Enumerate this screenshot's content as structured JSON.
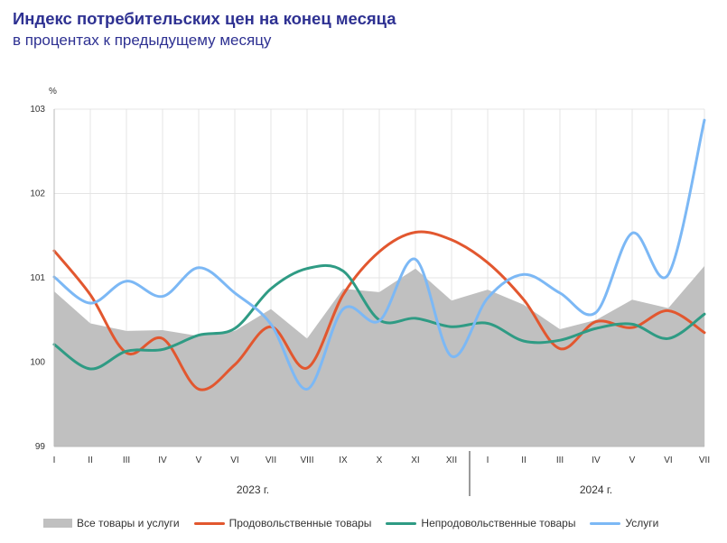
{
  "title": "Индекс потребительских цен на конец месяца",
  "subtitle": "в процентах к предыдущему месяцу",
  "chart_data": {
    "type": "line",
    "ylabel": "%",
    "ylim": [
      99,
      103
    ],
    "yticks": [
      "99",
      "100",
      "101",
      "102",
      "103"
    ],
    "categories": [
      "I",
      "II",
      "III",
      "IV",
      "V",
      "VI",
      "VII",
      "VIII",
      "IX",
      "X",
      "XI",
      "XII",
      "I",
      "II",
      "III",
      "IV",
      "V",
      "VI",
      "VII"
    ],
    "years": [
      {
        "label": "2023 г.",
        "from": 0,
        "to": 11
      },
      {
        "label": "2024 г.",
        "from": 12,
        "to": 18
      }
    ],
    "grid": true,
    "legend_position": "bottom",
    "series": [
      {
        "name": "Все товары и услуги",
        "kind": "area",
        "color": "#c0c0c0",
        "values": [
          100.84,
          100.46,
          100.37,
          100.38,
          100.31,
          100.37,
          100.63,
          100.28,
          100.87,
          100.83,
          101.11,
          100.73,
          100.86,
          100.68,
          100.39,
          100.5,
          100.74,
          100.64,
          101.14
        ]
      },
      {
        "name": "Продовольственные товары",
        "kind": "line",
        "color": "#e2572f",
        "values": [
          101.32,
          100.8,
          100.11,
          100.28,
          99.68,
          99.97,
          100.42,
          99.93,
          100.8,
          101.31,
          101.54,
          101.45,
          101.18,
          100.74,
          100.16,
          100.48,
          100.41,
          100.61,
          100.35
        ]
      },
      {
        "name": "Непродовольственные товары",
        "kind": "line",
        "color": "#2f9b84",
        "values": [
          100.21,
          99.92,
          100.13,
          100.15,
          100.32,
          100.4,
          100.87,
          101.11,
          101.08,
          100.5,
          100.52,
          100.42,
          100.46,
          100.25,
          100.26,
          100.4,
          100.45,
          100.28,
          100.57
        ]
      },
      {
        "name": "Услуги",
        "kind": "line",
        "color": "#7cb8f5",
        "values": [
          101.01,
          100.7,
          100.96,
          100.78,
          101.12,
          100.82,
          100.45,
          99.68,
          100.63,
          100.49,
          101.22,
          100.07,
          100.76,
          101.04,
          100.82,
          100.59,
          101.53,
          101.04,
          102.87
        ]
      }
    ]
  }
}
